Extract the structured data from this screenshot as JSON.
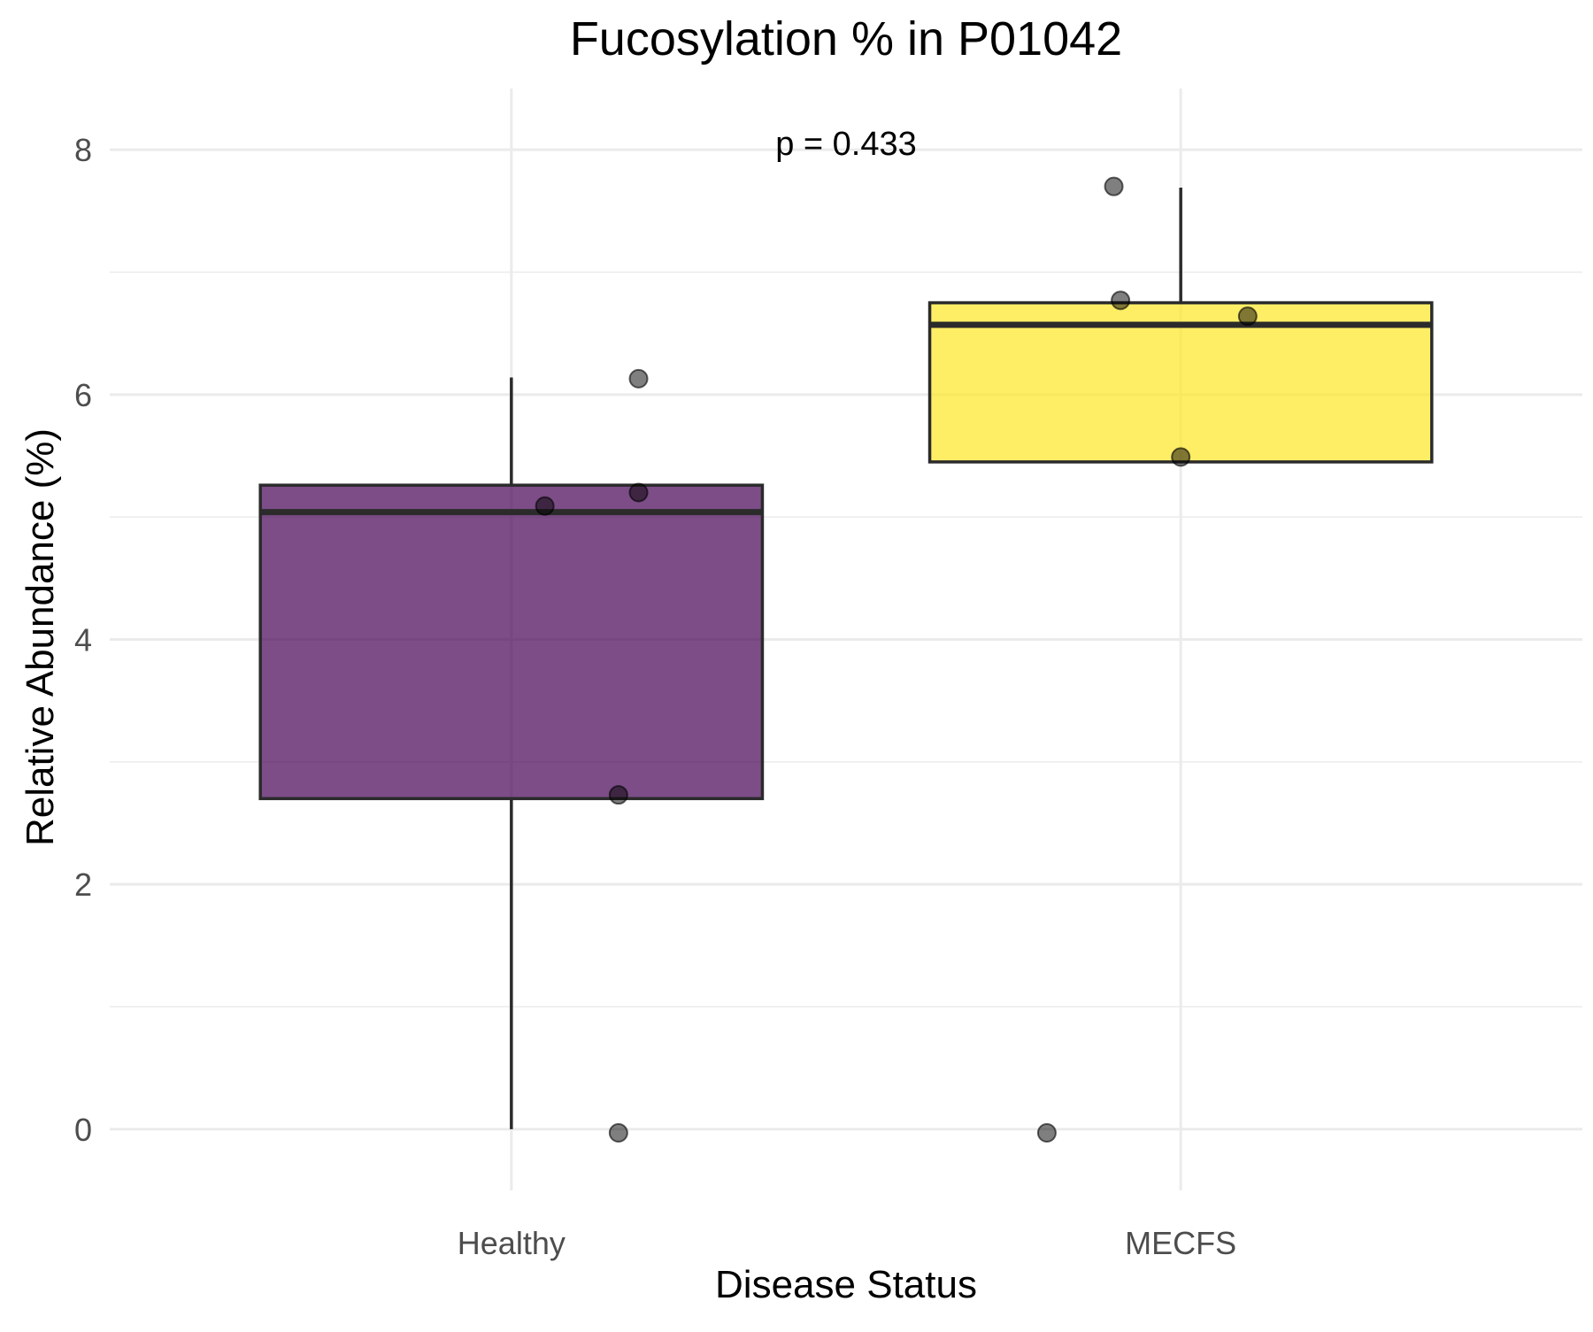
{
  "chart_data": {
    "type": "box",
    "title": "Fucosylation % in P01042",
    "xlabel": "Disease Status",
    "ylabel": "Relative Abundance (%)",
    "ylim": [
      -0.5,
      8.5
    ],
    "yticks": [
      0,
      2,
      4,
      6,
      8
    ],
    "grid": true,
    "legend": "none",
    "annotation": "p = 0.433",
    "categories": [
      "Healthy",
      "MECFS"
    ],
    "boxes": [
      {
        "category": "Healthy",
        "color": "#440154",
        "whisker_low": 0.0,
        "q1": 2.7,
        "median": 5.04,
        "q3": 5.26,
        "whisker_high": 6.14,
        "points": [
          {
            "y": 6.13,
            "jitter": 0.19
          },
          {
            "y": 5.2,
            "jitter": 0.19
          },
          {
            "y": 5.09,
            "jitter": 0.05
          },
          {
            "y": 2.73,
            "jitter": 0.16
          },
          {
            "y": -0.03,
            "jitter": 0.16
          }
        ]
      },
      {
        "category": "MECFS",
        "color": "#FDE725",
        "whisker_low": 5.45,
        "q1": 5.45,
        "median": 6.57,
        "q3": 6.75,
        "whisker_high": 7.69,
        "points": [
          {
            "y": 7.7,
            "jitter": -0.1
          },
          {
            "y": 6.77,
            "jitter": -0.09
          },
          {
            "y": 6.64,
            "jitter": 0.1
          },
          {
            "y": 5.49,
            "jitter": 0.0
          },
          {
            "y": -0.03,
            "jitter": -0.2
          }
        ]
      }
    ]
  }
}
